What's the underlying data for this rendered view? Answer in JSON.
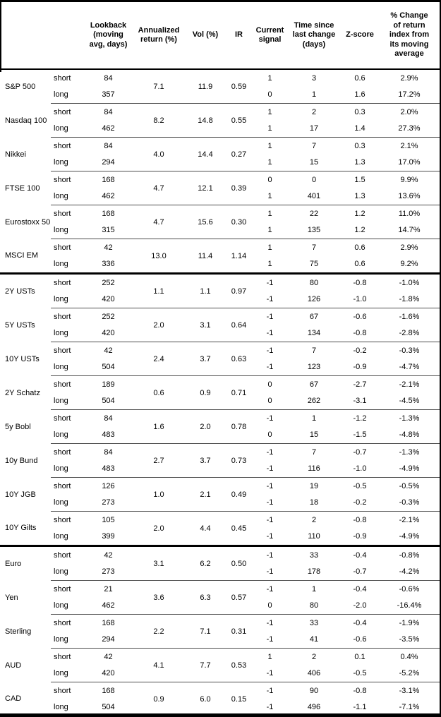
{
  "table": {
    "headers": [
      "",
      "",
      "Lookback (moving avg, days)",
      "Annualized return (%)",
      "Vol (%)",
      "IR",
      "Current signal",
      "Time since last change (days)",
      "Z-score",
      "% Change of return index from its moving average"
    ],
    "sections": [
      [
        {
          "name": "S&P 500",
          "annualized_return": "7.1",
          "vol": "11.9",
          "ir": "0.59",
          "rows": [
            {
              "horizon": "short",
              "lookback": "84",
              "signal": "1",
              "time_since": "3",
              "z_score": "0.6",
              "pct_change": "2.9%"
            },
            {
              "horizon": "long",
              "lookback": "357",
              "signal": "0",
              "time_since": "1",
              "z_score": "1.6",
              "pct_change": "17.2%"
            }
          ]
        },
        {
          "name": "Nasdaq 100",
          "annualized_return": "8.2",
          "vol": "14.8",
          "ir": "0.55",
          "rows": [
            {
              "horizon": "short",
              "lookback": "84",
              "signal": "1",
              "time_since": "2",
              "z_score": "0.3",
              "pct_change": "2.0%"
            },
            {
              "horizon": "long",
              "lookback": "462",
              "signal": "1",
              "time_since": "17",
              "z_score": "1.4",
              "pct_change": "27.3%"
            }
          ]
        },
        {
          "name": "Nikkei",
          "annualized_return": "4.0",
          "vol": "14.4",
          "ir": "0.27",
          "rows": [
            {
              "horizon": "short",
              "lookback": "84",
              "signal": "1",
              "time_since": "7",
              "z_score": "0.3",
              "pct_change": "2.1%"
            },
            {
              "horizon": "long",
              "lookback": "294",
              "signal": "1",
              "time_since": "15",
              "z_score": "1.3",
              "pct_change": "17.0%"
            }
          ]
        },
        {
          "name": "FTSE 100",
          "annualized_return": "4.7",
          "vol": "12.1",
          "ir": "0.39",
          "rows": [
            {
              "horizon": "short",
              "lookback": "168",
              "signal": "0",
              "time_since": "0",
              "z_score": "1.5",
              "pct_change": "9.9%"
            },
            {
              "horizon": "long",
              "lookback": "462",
              "signal": "1",
              "time_since": "401",
              "z_score": "1.3",
              "pct_change": "13.6%"
            }
          ]
        },
        {
          "name": "Eurostoxx 50",
          "annualized_return": "4.7",
          "vol": "15.6",
          "ir": "0.30",
          "rows": [
            {
              "horizon": "short",
              "lookback": "168",
              "signal": "1",
              "time_since": "22",
              "z_score": "1.2",
              "pct_change": "11.0%"
            },
            {
              "horizon": "long",
              "lookback": "315",
              "signal": "1",
              "time_since": "135",
              "z_score": "1.2",
              "pct_change": "14.7%"
            }
          ]
        },
        {
          "name": "MSCI EM",
          "annualized_return": "13.0",
          "vol": "11.4",
          "ir": "1.14",
          "rows": [
            {
              "horizon": "short",
              "lookback": "42",
              "signal": "1",
              "time_since": "7",
              "z_score": "0.6",
              "pct_change": "2.9%"
            },
            {
              "horizon": "long",
              "lookback": "336",
              "signal": "1",
              "time_since": "75",
              "z_score": "0.6",
              "pct_change": "9.2%"
            }
          ]
        }
      ],
      [
        {
          "name": "2Y USTs",
          "annualized_return": "1.1",
          "vol": "1.1",
          "ir": "0.97",
          "rows": [
            {
              "horizon": "short",
              "lookback": "252",
              "signal": "-1",
              "time_since": "80",
              "z_score": "-0.8",
              "pct_change": "-1.0%"
            },
            {
              "horizon": "long",
              "lookback": "420",
              "signal": "-1",
              "time_since": "126",
              "z_score": "-1.0",
              "pct_change": "-1.8%"
            }
          ]
        },
        {
          "name": "5Y USTs",
          "annualized_return": "2.0",
          "vol": "3.1",
          "ir": "0.64",
          "rows": [
            {
              "horizon": "short",
              "lookback": "252",
              "signal": "-1",
              "time_since": "67",
              "z_score": "-0.6",
              "pct_change": "-1.6%"
            },
            {
              "horizon": "long",
              "lookback": "420",
              "signal": "-1",
              "time_since": "134",
              "z_score": "-0.8",
              "pct_change": "-2.8%"
            }
          ]
        },
        {
          "name": "10Y USTs",
          "annualized_return": "2.4",
          "vol": "3.7",
          "ir": "0.63",
          "rows": [
            {
              "horizon": "short",
              "lookback": "42",
              "signal": "-1",
              "time_since": "7",
              "z_score": "-0.2",
              "pct_change": "-0.3%"
            },
            {
              "horizon": "long",
              "lookback": "504",
              "signal": "-1",
              "time_since": "123",
              "z_score": "-0.9",
              "pct_change": "-4.7%"
            }
          ]
        },
        {
          "name": "2Y Schatz",
          "annualized_return": "0.6",
          "vol": "0.9",
          "ir": "0.71",
          "rows": [
            {
              "horizon": "short",
              "lookback": "189",
              "signal": "0",
              "time_since": "67",
              "z_score": "-2.7",
              "pct_change": "-2.1%"
            },
            {
              "horizon": "long",
              "lookback": "504",
              "signal": "0",
              "time_since": "262",
              "z_score": "-3.1",
              "pct_change": "-4.5%"
            }
          ]
        },
        {
          "name": "5y Bobl",
          "annualized_return": "1.6",
          "vol": "2.0",
          "ir": "0.78",
          "rows": [
            {
              "horizon": "short",
              "lookback": "84",
              "signal": "-1",
              "time_since": "1",
              "z_score": "-1.2",
              "pct_change": "-1.3%"
            },
            {
              "horizon": "long",
              "lookback": "483",
              "signal": "0",
              "time_since": "15",
              "z_score": "-1.5",
              "pct_change": "-4.8%"
            }
          ]
        },
        {
          "name": "10y Bund",
          "annualized_return": "2.7",
          "vol": "3.7",
          "ir": "0.73",
          "rows": [
            {
              "horizon": "short",
              "lookback": "84",
              "signal": "-1",
              "time_since": "7",
              "z_score": "-0.7",
              "pct_change": "-1.3%"
            },
            {
              "horizon": "long",
              "lookback": "483",
              "signal": "-1",
              "time_since": "116",
              "z_score": "-1.0",
              "pct_change": "-4.9%"
            }
          ]
        },
        {
          "name": "10Y JGB",
          "annualized_return": "1.0",
          "vol": "2.1",
          "ir": "0.49",
          "rows": [
            {
              "horizon": "short",
              "lookback": "126",
              "signal": "-1",
              "time_since": "19",
              "z_score": "-0.5",
              "pct_change": "-0.5%"
            },
            {
              "horizon": "long",
              "lookback": "273",
              "signal": "-1",
              "time_since": "18",
              "z_score": "-0.2",
              "pct_change": "-0.3%"
            }
          ]
        },
        {
          "name": "10Y Gilts",
          "annualized_return": "2.0",
          "vol": "4.4",
          "ir": "0.45",
          "rows": [
            {
              "horizon": "short",
              "lookback": "105",
              "signal": "-1",
              "time_since": "2",
              "z_score": "-0.8",
              "pct_change": "-2.1%"
            },
            {
              "horizon": "long",
              "lookback": "399",
              "signal": "-1",
              "time_since": "110",
              "z_score": "-0.9",
              "pct_change": "-4.9%"
            }
          ]
        }
      ],
      [
        {
          "name": "Euro",
          "annualized_return": "3.1",
          "vol": "6.2",
          "ir": "0.50",
          "rows": [
            {
              "horizon": "short",
              "lookback": "42",
              "signal": "-1",
              "time_since": "33",
              "z_score": "-0.4",
              "pct_change": "-0.8%"
            },
            {
              "horizon": "long",
              "lookback": "273",
              "signal": "-1",
              "time_since": "178",
              "z_score": "-0.7",
              "pct_change": "-4.2%"
            }
          ]
        },
        {
          "name": "Yen",
          "annualized_return": "3.6",
          "vol": "6.3",
          "ir": "0.57",
          "rows": [
            {
              "horizon": "short",
              "lookback": "21",
              "signal": "-1",
              "time_since": "1",
              "z_score": "-0.4",
              "pct_change": "-0.6%"
            },
            {
              "horizon": "long",
              "lookback": "462",
              "signal": "0",
              "time_since": "80",
              "z_score": "-2.0",
              "pct_change": "-16.4%"
            }
          ]
        },
        {
          "name": "Sterling",
          "annualized_return": "2.2",
          "vol": "7.1",
          "ir": "0.31",
          "rows": [
            {
              "horizon": "short",
              "lookback": "168",
              "signal": "-1",
              "time_since": "33",
              "z_score": "-0.4",
              "pct_change": "-1.9%"
            },
            {
              "horizon": "long",
              "lookback": "294",
              "signal": "-1",
              "time_since": "41",
              "z_score": "-0.6",
              "pct_change": "-3.5%"
            }
          ]
        },
        {
          "name": "AUD",
          "annualized_return": "4.1",
          "vol": "7.7",
          "ir": "0.53",
          "rows": [
            {
              "horizon": "short",
              "lookback": "42",
              "signal": "1",
              "time_since": "2",
              "z_score": "0.1",
              "pct_change": "0.4%"
            },
            {
              "horizon": "long",
              "lookback": "420",
              "signal": "-1",
              "time_since": "406",
              "z_score": "-0.5",
              "pct_change": "-5.2%"
            }
          ]
        },
        {
          "name": "CAD",
          "annualized_return": "0.9",
          "vol": "6.0",
          "ir": "0.15",
          "rows": [
            {
              "horizon": "short",
              "lookback": "168",
              "signal": "-1",
              "time_since": "90",
              "z_score": "-0.8",
              "pct_change": "-3.1%"
            },
            {
              "horizon": "long",
              "lookback": "504",
              "signal": "-1",
              "time_since": "496",
              "z_score": "-1.1",
              "pct_change": "-7.1%"
            }
          ]
        }
      ]
    ]
  }
}
